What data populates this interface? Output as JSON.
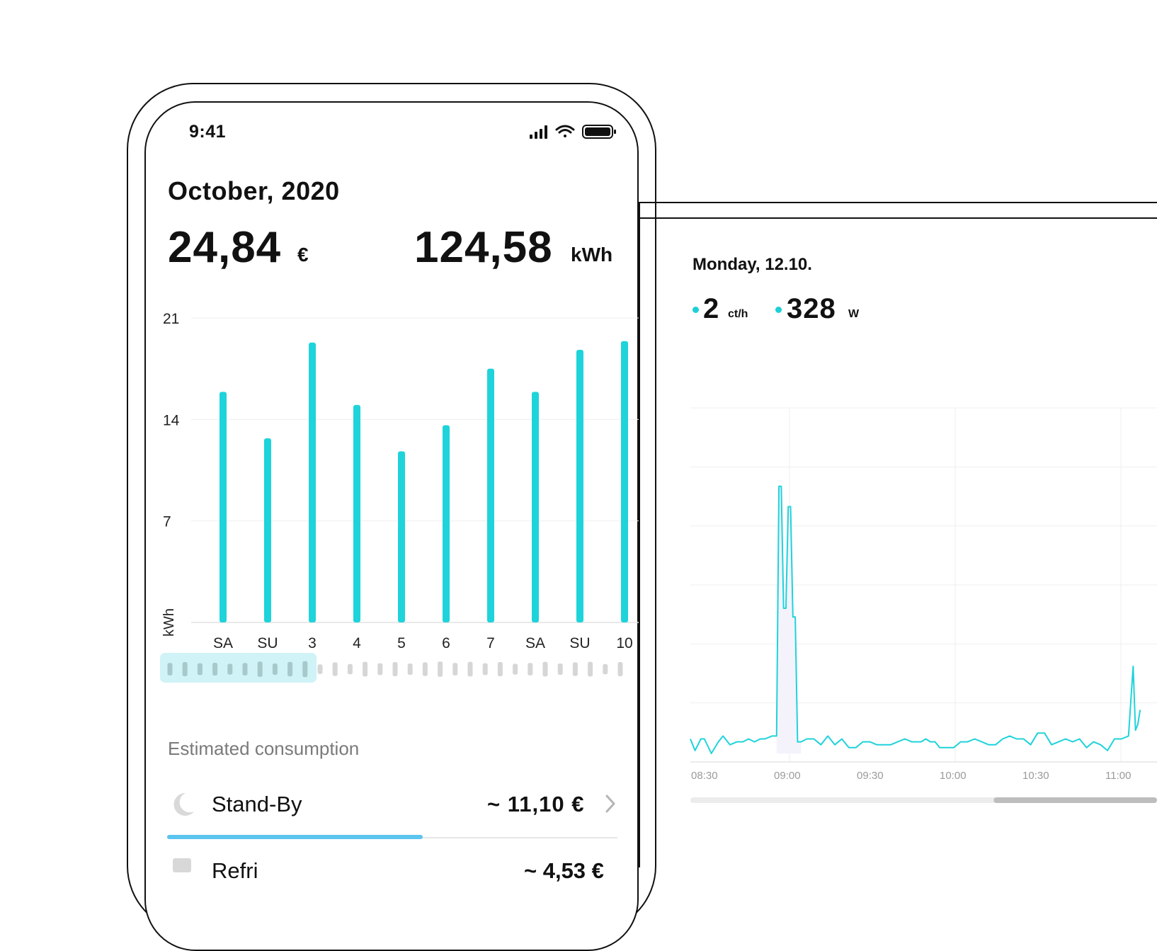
{
  "status_bar": {
    "time": "9:41",
    "icons": [
      "signal-icon",
      "wifi-icon",
      "battery-icon"
    ]
  },
  "summary": {
    "title": "October, 2020",
    "cost_value": "24,84",
    "cost_unit": "€",
    "energy_value": "124,58",
    "energy_unit": "kWh"
  },
  "colors": {
    "accent": "#1fd3da",
    "progress": "#5bc4ef",
    "selection": "#cff3f6",
    "grid": "#eeeeee"
  },
  "scrubber": {
    "selected_days": 10,
    "total_days": 31,
    "relative_levels": [
      0.6,
      0.75,
      0.55,
      0.62,
      0.45,
      0.6,
      0.85,
      0.5,
      0.78,
      0.9,
      0.35,
      0.7,
      0.4,
      0.8,
      0.55,
      0.75,
      0.5,
      0.7,
      0.85,
      0.6,
      0.8,
      0.55,
      0.75,
      0.45,
      0.6,
      0.8,
      0.5,
      0.7,
      0.8,
      0.4,
      0.75
    ]
  },
  "consumption": {
    "section_title": "Estimated consumption",
    "rows": [
      {
        "icon": "moon-icon",
        "label": "Stand-By",
        "value": "~ 11,10 €",
        "share": 0.567
      }
    ],
    "next_row": {
      "label": "Refri",
      "value": "~ 4,53 €"
    }
  },
  "detail": {
    "day_title": "Monday, 12.10.",
    "price_value": "2",
    "price_unit": "ct/h",
    "power_value": "328",
    "power_unit": "W"
  },
  "chart_data": [
    {
      "type": "bar",
      "ylabel": "kWh",
      "categories": [
        "SA",
        "SU",
        "3",
        "4",
        "5",
        "6",
        "7",
        "SA",
        "SU",
        "10"
      ],
      "values": [
        15.9,
        12.7,
        19.3,
        15.0,
        11.8,
        13.6,
        17.5,
        15.9,
        18.8,
        19.4
      ],
      "yticks": [
        21,
        14,
        7
      ],
      "ylim": [
        0,
        21
      ],
      "grid": true
    },
    {
      "type": "area",
      "x_ticks": [
        "08:30",
        "09:00",
        "09:30",
        "10:00",
        "10:30",
        "11:00"
      ],
      "x_minutes": [
        0,
        4,
        9,
        12,
        18,
        24,
        28,
        34,
        40,
        45,
        50,
        55,
        60,
        64,
        70,
        74,
        76,
        78,
        80,
        82,
        84,
        86,
        88,
        90,
        92,
        95,
        100,
        106,
        112,
        118,
        124,
        130,
        136,
        142,
        148,
        154,
        160,
        166,
        172,
        178,
        184,
        190,
        194,
        198,
        202,
        206,
        210,
        214,
        218,
        222,
        226,
        232,
        238,
        244,
        250,
        256,
        262,
        268,
        274,
        280,
        286,
        292,
        298,
        304,
        310,
        316,
        322,
        328,
        334,
        340,
        346,
        352,
        358,
        364,
        370,
        376,
        380,
        382,
        384,
        386
      ],
      "values": [
        5,
        1,
        5,
        5,
        0,
        4,
        6,
        3,
        4,
        4,
        5,
        4,
        5,
        5,
        6,
        6,
        92,
        92,
        50,
        50,
        85,
        85,
        47,
        47,
        4,
        4,
        5,
        5,
        3,
        6,
        3,
        5,
        2,
        2,
        4,
        4,
        3,
        3,
        3,
        4,
        5,
        4,
        4,
        4,
        5,
        4,
        4,
        2,
        2,
        2,
        2,
        4,
        4,
        5,
        4,
        3,
        3,
        5,
        6,
        5,
        5,
        3,
        7,
        7,
        3,
        4,
        5,
        4,
        5,
        2,
        4,
        3,
        1,
        5,
        5,
        6,
        30,
        8,
        10,
        15
      ],
      "x_range_minutes": [
        0,
        395
      ],
      "ylim": [
        0,
        100
      ],
      "scrollbar_thumb": [
        0.65,
        1.0
      ],
      "grid": true
    }
  ]
}
